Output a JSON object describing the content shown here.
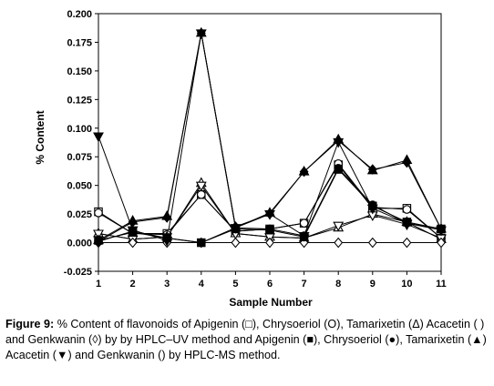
{
  "chart_data": {
    "type": "line",
    "xlabel": "Sample Number",
    "ylabel": "% Content",
    "x": [
      1,
      2,
      3,
      4,
      5,
      6,
      7,
      8,
      9,
      10,
      11
    ],
    "xlim": [
      1,
      11
    ],
    "ylim": [
      -0.025,
      0.2
    ],
    "y_ticks": [
      -0.025,
      0.0,
      0.025,
      0.05,
      0.075,
      0.1,
      0.125,
      0.15,
      0.175,
      0.2
    ],
    "y_tick_labels": [
      "-0.025",
      "0.000",
      "0.025",
      "0.050",
      "0.075",
      "0.100",
      "0.125",
      "0.150",
      "0.175",
      "0.200"
    ],
    "x_tick_labels": [
      "1",
      "2",
      "3",
      "4",
      "5",
      "6",
      "7",
      "8",
      "9",
      "10",
      "11"
    ],
    "grid": false,
    "legend": "none",
    "series": [
      {
        "marker": "square-open",
        "values": [
          0.027,
          0.008,
          0.008,
          0.042,
          0.01,
          0.012,
          0.017,
          0.068,
          0.03,
          0.03,
          0.004
        ]
      },
      {
        "marker": "circle-open",
        "values": [
          0.026,
          0.008,
          0.007,
          0.042,
          0.01,
          0.012,
          0.017,
          0.069,
          0.031,
          0.029,
          0.004
        ]
      },
      {
        "marker": "triangle-up-open",
        "values": [
          0.008,
          0.003,
          0.005,
          0.052,
          0.008,
          0.005,
          0.004,
          0.013,
          0.025,
          0.018,
          0.003
        ]
      },
      {
        "marker": "triangle-down-open",
        "values": [
          0.008,
          0.003,
          0.005,
          0.05,
          0.008,
          0.005,
          0.004,
          0.015,
          0.024,
          0.016,
          0.004
        ]
      },
      {
        "marker": "diamond-open",
        "values": [
          0.0,
          0.0,
          0.0,
          0.0,
          0.0,
          0.0,
          0.0,
          0.0,
          0.0,
          0.0,
          0.0
        ]
      },
      {
        "marker": "square-filled",
        "values": [
          0.002,
          0.009,
          0.004,
          0.0,
          0.012,
          0.011,
          0.005,
          0.064,
          0.032,
          0.018,
          0.012
        ]
      },
      {
        "marker": "circle-filled",
        "values": [
          0.001,
          0.01,
          0.004,
          0.0,
          0.013,
          0.012,
          0.006,
          0.065,
          0.033,
          0.017,
          0.012
        ]
      },
      {
        "marker": "triangle-up-filled",
        "values": [
          0.002,
          0.019,
          0.023,
          0.183,
          0.013,
          0.026,
          0.062,
          0.09,
          0.063,
          0.072,
          0.012
        ]
      },
      {
        "marker": "triangle-down-filled",
        "values": [
          0.093,
          0.011,
          0.002,
          0.183,
          0.013,
          0.025,
          0.006,
          0.088,
          0.03,
          0.017,
          0.011
        ]
      },
      {
        "marker": "diamond-filled",
        "values": [
          0.001,
          0.018,
          0.022,
          0.183,
          0.014,
          0.025,
          0.062,
          0.089,
          0.064,
          0.07,
          0.012
        ]
      }
    ]
  },
  "caption": {
    "label": "Figure 9:",
    "text": "% Content of flavonoids of Apigenin (□), Chrysoeriol (O), Tamarixetin (Δ) Acacetin ( ) and Genkwanin (◊) by by HPLC–UV method and Apigenin (■), Chrysoeriol (●), Tamarixetin (▲) Acacetin (▼) and Genkwanin () by HPLC-MS method."
  }
}
